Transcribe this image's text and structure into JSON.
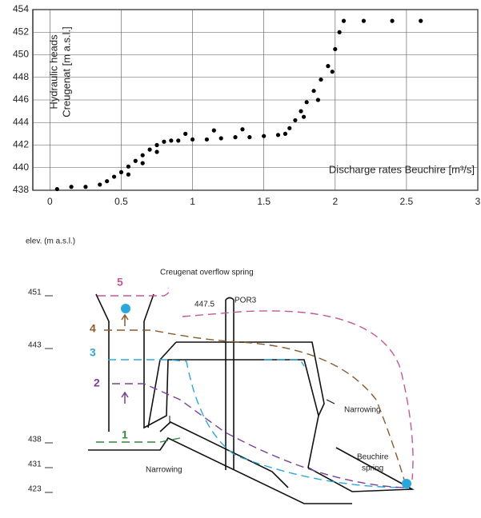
{
  "chart_data": {
    "type": "scatter",
    "y_label": [
      "Hydraulic heads",
      "Creugenat [m a.s.l.]"
    ],
    "x_label": "Discharge rates Beuchire [m³/s]",
    "x": [
      0.05,
      0.15,
      0.25,
      0.35,
      0.4,
      0.45,
      0.5,
      0.55,
      0.6,
      0.65,
      0.7,
      0.75,
      0.8,
      0.85,
      0.9,
      1.0,
      1.1,
      1.2,
      1.3,
      1.4,
      1.5,
      1.6,
      1.65,
      1.68,
      1.72,
      1.76,
      1.8,
      1.85,
      1.9,
      1.95,
      2.0,
      2.03,
      2.06,
      2.2,
      2.4,
      2.6,
      0.55,
      0.65,
      0.75,
      0.95,
      1.15,
      1.35,
      1.78,
      1.88,
      1.98
    ],
    "values": [
      438.1,
      438.3,
      438.3,
      438.5,
      438.8,
      439.2,
      439.6,
      440.1,
      440.6,
      441.1,
      441.6,
      442.0,
      442.3,
      442.4,
      442.4,
      442.5,
      442.5,
      442.6,
      442.7,
      442.7,
      442.8,
      442.9,
      443.0,
      443.5,
      444.2,
      445.0,
      445.8,
      446.8,
      447.8,
      449.0,
      450.5,
      452.0,
      453.0,
      453.0,
      453.0,
      453.0,
      439.4,
      440.4,
      441.4,
      443.0,
      443.3,
      443.4,
      444.5,
      446.0,
      448.5
    ],
    "color": "#000000",
    "xlim": [
      -0.12,
      3
    ],
    "ylim": [
      438,
      454
    ],
    "xticks": [
      0,
      0.5,
      1,
      1.5,
      2,
      2.5,
      3
    ],
    "yticks": [
      438,
      440,
      442,
      444,
      446,
      448,
      450,
      452,
      454
    ],
    "grid": true
  },
  "diagram": {
    "elev_title": "elev. (m a.s.l.)",
    "elevations": [
      "451",
      "443",
      "438",
      "431",
      "423"
    ],
    "levels": [
      "5",
      "4",
      "3",
      "2",
      "1"
    ],
    "overflow": "Creugenat overflow spring",
    "por3_elev": "447.5",
    "por3": "POR3",
    "narrowing_right": "Narrowing",
    "narrowing_left": "Narrowing",
    "spring": [
      "Beuchire",
      "spring"
    ]
  }
}
